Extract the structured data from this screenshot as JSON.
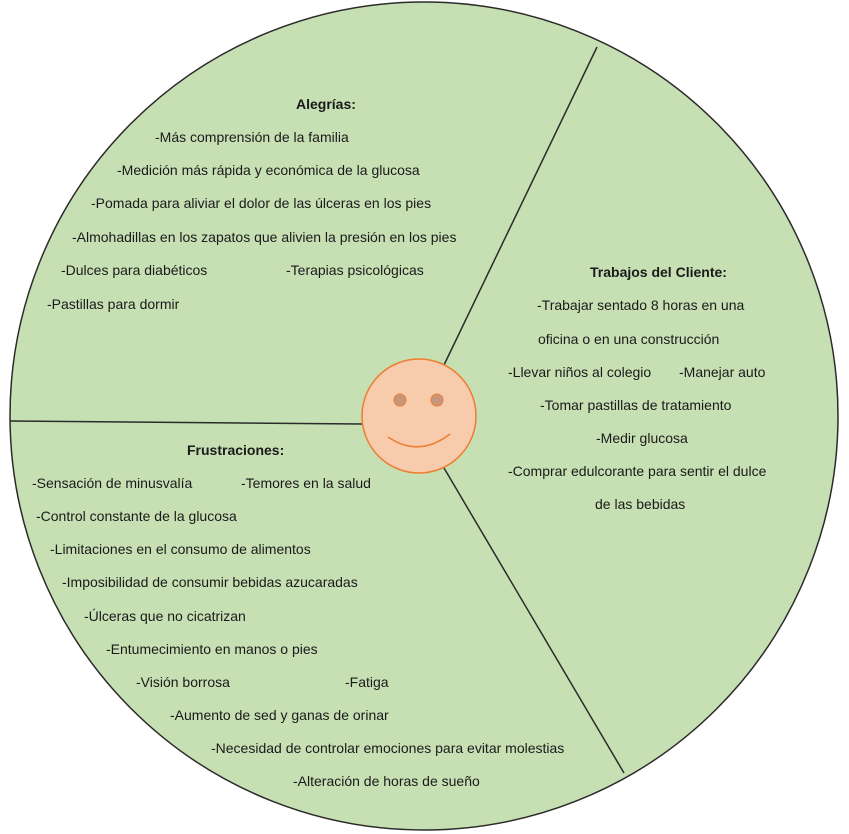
{
  "colors": {
    "wheel_fill": "#c6e0b4",
    "wheel_stroke": "#2b2b2b",
    "face_fill": "#f8cbad",
    "face_stroke": "#ed7d31",
    "eye_fill": "#c5977a"
  },
  "sections": {
    "alegrias": {
      "title": "Alegrías:",
      "items": [
        "-Más comprensión de la familia",
        "-Medición más rápida y económica de la glucosa",
        "-Pomada para aliviar el dolor de las úlceras en los pies",
        "-Almohadillas en los zapatos que alivien la presión en los pies",
        "-Dulces para diabéticos",
        "-Terapias psicológicas",
        "-Pastillas para dormir"
      ]
    },
    "trabajos": {
      "title": "Trabajos del Cliente:",
      "items": [
        "-Trabajar sentado 8 horas en una",
        "oficina o en una construcción",
        "-Llevar niños al colegio",
        "-Manejar auto",
        "-Tomar pastillas de tratamiento",
        "-Medir glucosa",
        "-Comprar edulcorante para sentir el dulce",
        "de las bebidas"
      ]
    },
    "frustraciones": {
      "title": "Frustraciones:",
      "items": [
        "-Sensación de minusvalía",
        "-Temores en la salud",
        "-Control constante de la glucosa",
        "-Limitaciones en el consumo de alimentos",
        "-Imposibilidad de consumir bebidas azucaradas",
        "-Úlceras que no cicatrizan",
        "-Entumecimiento en manos o pies",
        "-Visión borrosa",
        "-Fatiga",
        "-Aumento de sed y ganas de orinar",
        "-Necesidad de controlar emociones para evitar molestias",
        "-Alteración de horas de sueño"
      ]
    }
  }
}
